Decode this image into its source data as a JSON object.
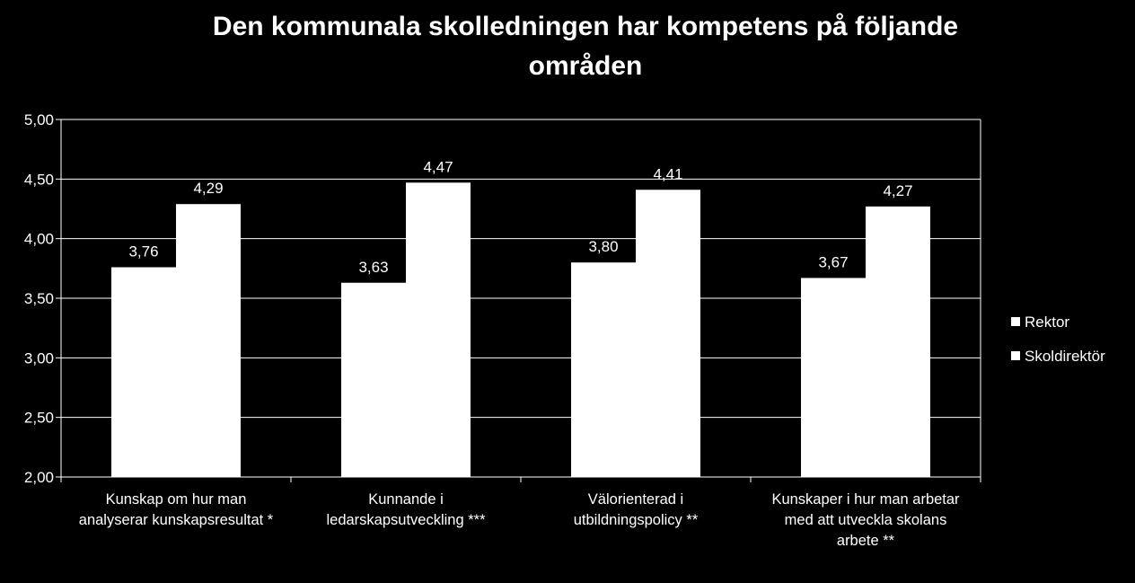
{
  "chart_data": {
    "type": "bar",
    "title_lines": [
      "Den kommunala skolledningen har kompetens på följande",
      "områden"
    ],
    "categories": [
      [
        "Kunskap om hur man",
        "analyserar kunskapsresultat *"
      ],
      [
        "Kunnande i",
        "ledarskapsutveckling ***"
      ],
      [
        "Välorienterad i",
        "utbildningspolicy **"
      ],
      [
        "Kunskaper i hur man arbetar",
        "med att utveckla skolans",
        "arbete **"
      ]
    ],
    "series": [
      {
        "name": "Rektor",
        "values": [
          3.76,
          3.63,
          3.8,
          3.67
        ],
        "labels": [
          "3,76",
          "3,63",
          "3,80",
          "3,67"
        ],
        "color": "#ffffff"
      },
      {
        "name": "Skoldirektör",
        "values": [
          4.29,
          4.47,
          4.41,
          4.27
        ],
        "labels": [
          "4,29",
          "4,47",
          "4,41",
          "4,27"
        ],
        "color": "#ffffff"
      }
    ],
    "ylim": [
      2.0,
      5.0
    ],
    "yticks": [
      {
        "value": 2.0,
        "label": "2,00"
      },
      {
        "value": 2.5,
        "label": "2,50"
      },
      {
        "value": 3.0,
        "label": "3,00"
      },
      {
        "value": 3.5,
        "label": "3,50"
      },
      {
        "value": 4.0,
        "label": "4,00"
      },
      {
        "value": 4.5,
        "label": "4,50"
      },
      {
        "value": 5.0,
        "label": "5,00"
      }
    ],
    "grid": true,
    "legend_position": "right",
    "background": "#000000",
    "foreground": "#ffffff"
  }
}
